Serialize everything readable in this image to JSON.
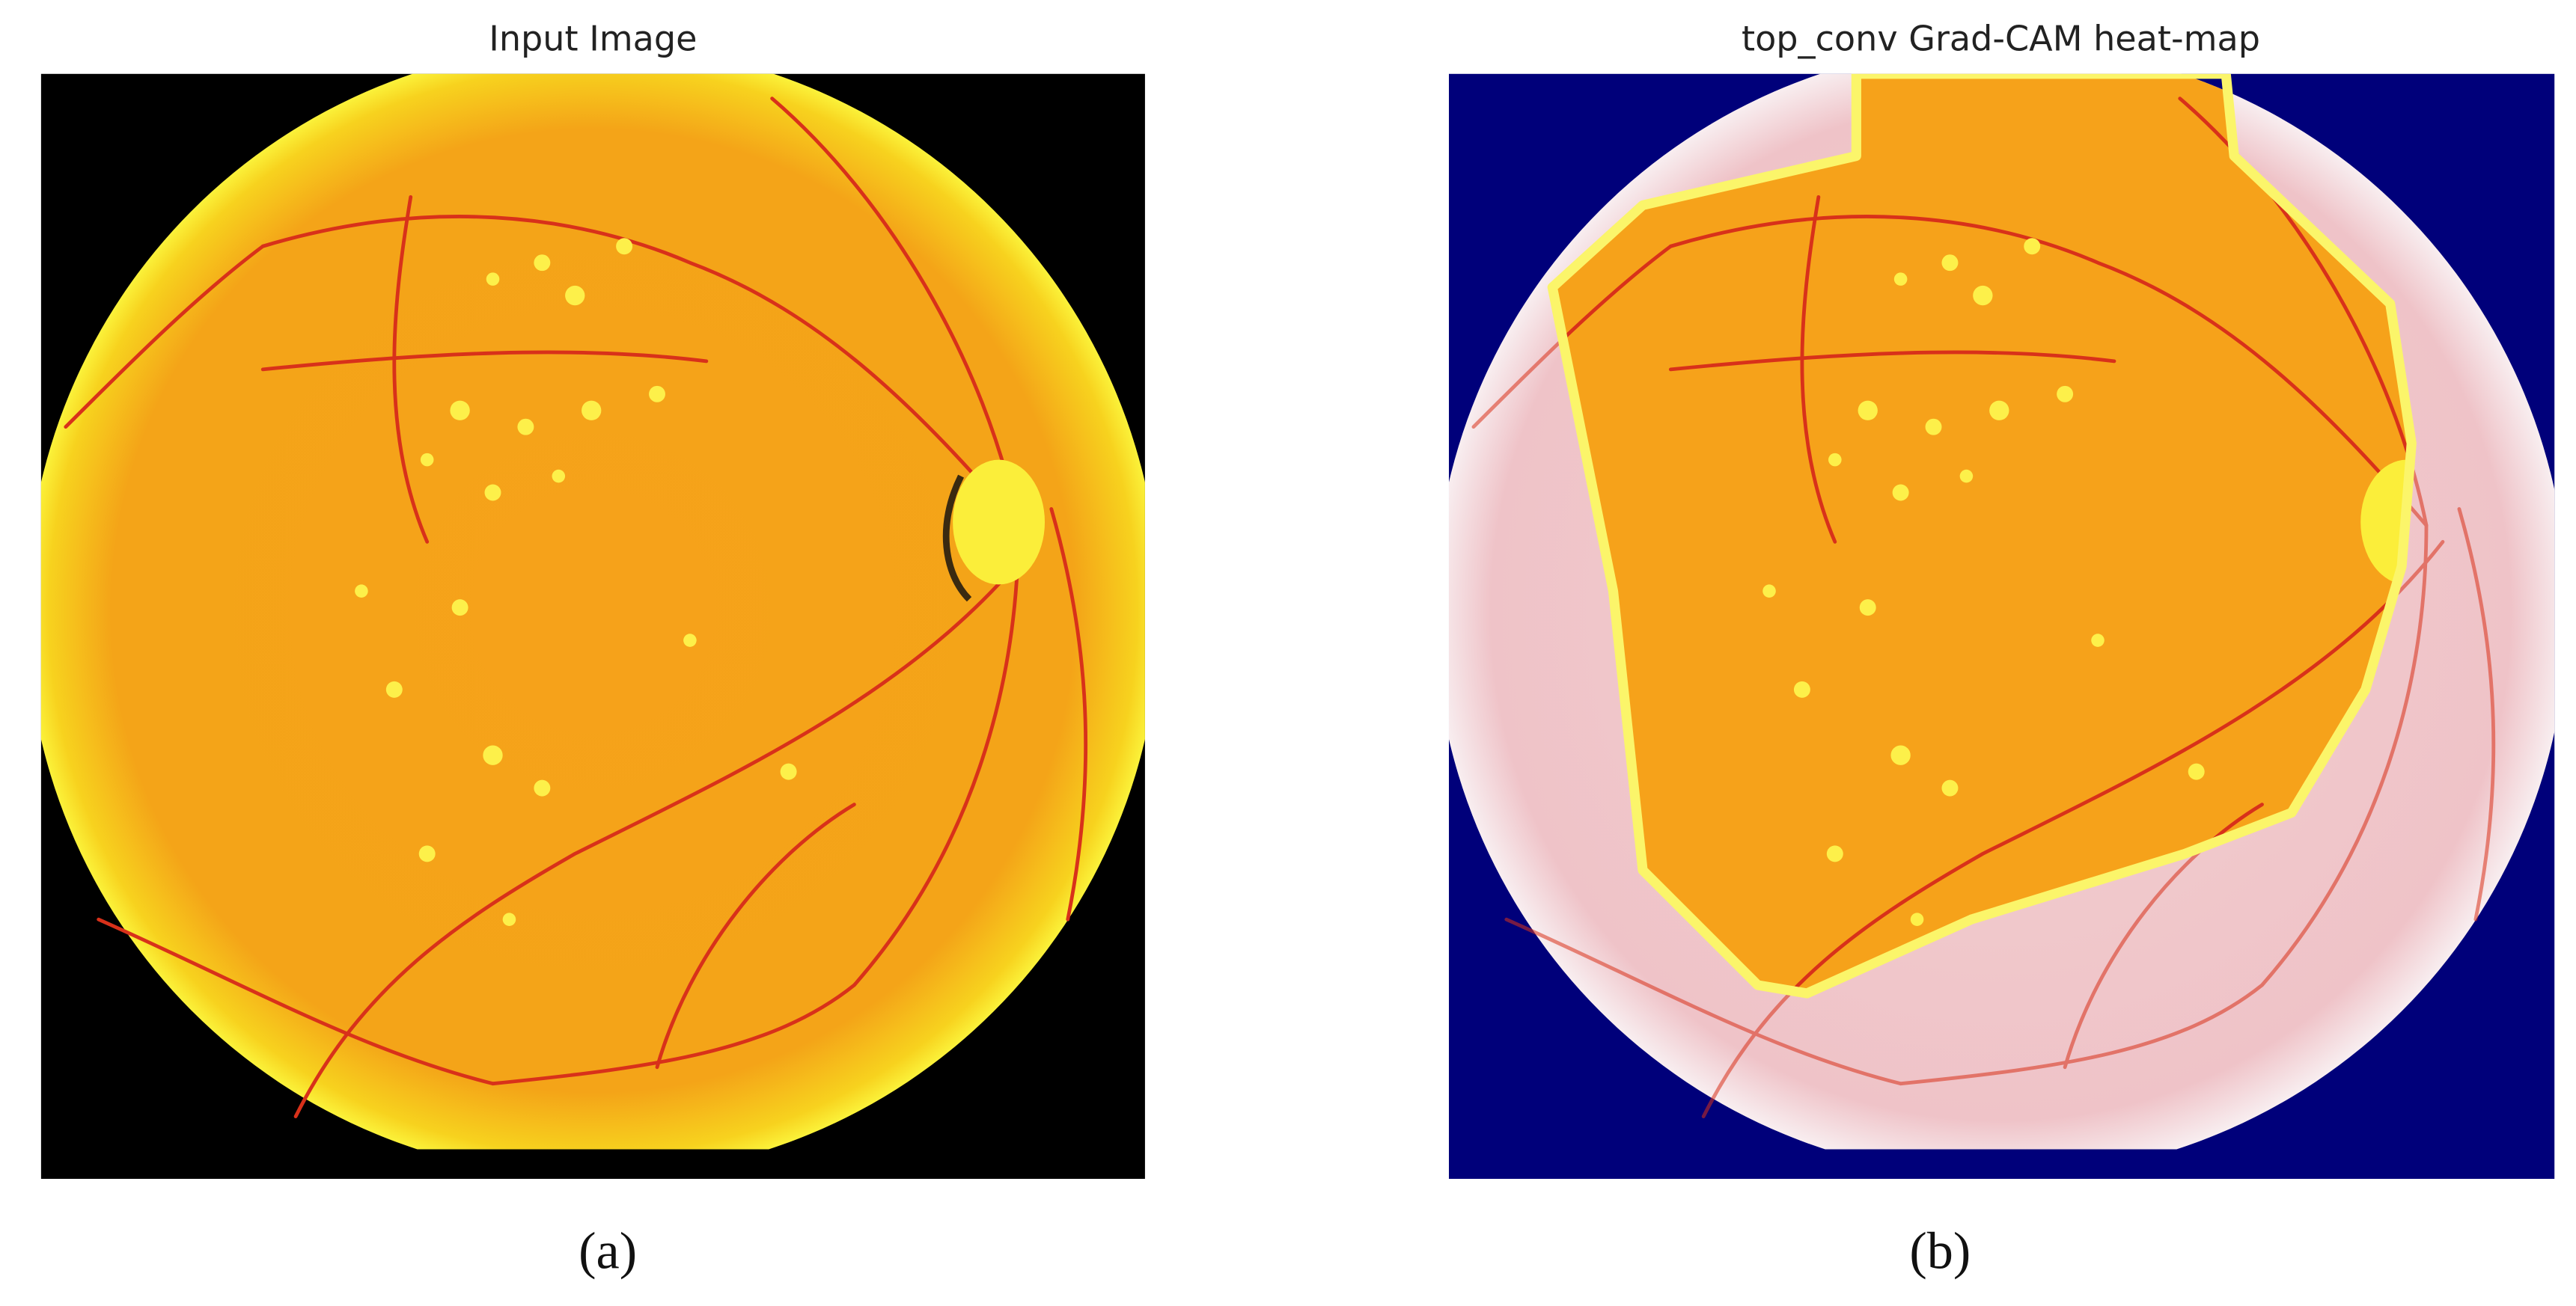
{
  "panels": [
    {
      "title": "Input Image",
      "caption": "(a)"
    },
    {
      "title": "top_conv Grad-CAM heat-map",
      "caption": "(b)"
    }
  ]
}
